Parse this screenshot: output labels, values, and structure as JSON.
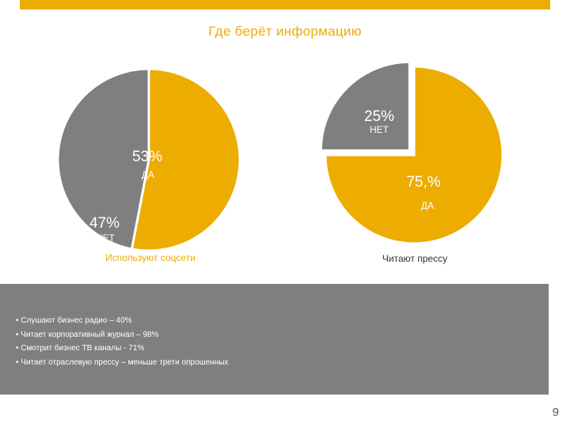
{
  "slide": {
    "title": "Где берёт информацию",
    "page_number": "9"
  },
  "colors": {
    "accent": "#ECAC00",
    "gray": "#7F7F7F",
    "text_dark": "#333333"
  },
  "chart_data": [
    {
      "type": "pie",
      "title": "",
      "caption": "Используют соцсети",
      "slices": [
        {
          "label": "ДА",
          "value": 53,
          "value_label": "53%",
          "color": "#ECAC00"
        },
        {
          "label": "НЕТ",
          "value": 47,
          "value_label": "47%",
          "color": "#7F7F7F"
        }
      ]
    },
    {
      "type": "pie",
      "title": "",
      "caption": "Читают прессу",
      "slices": [
        {
          "label": "ДА",
          "value": 75,
          "value_label": "75,%",
          "color": "#ECAC00"
        },
        {
          "label": "НЕТ",
          "value": 25,
          "value_label": "25%",
          "color": "#7F7F7F",
          "exploded": true
        }
      ]
    }
  ],
  "notes": [
    "Слушают бизнес радио – 40%",
    "Читает корпоративный журнал – 98%",
    "Смотрит бизнес ТВ каналы - 71%",
    "Читает отраслевую прессу – меньше трети опрошенных"
  ]
}
